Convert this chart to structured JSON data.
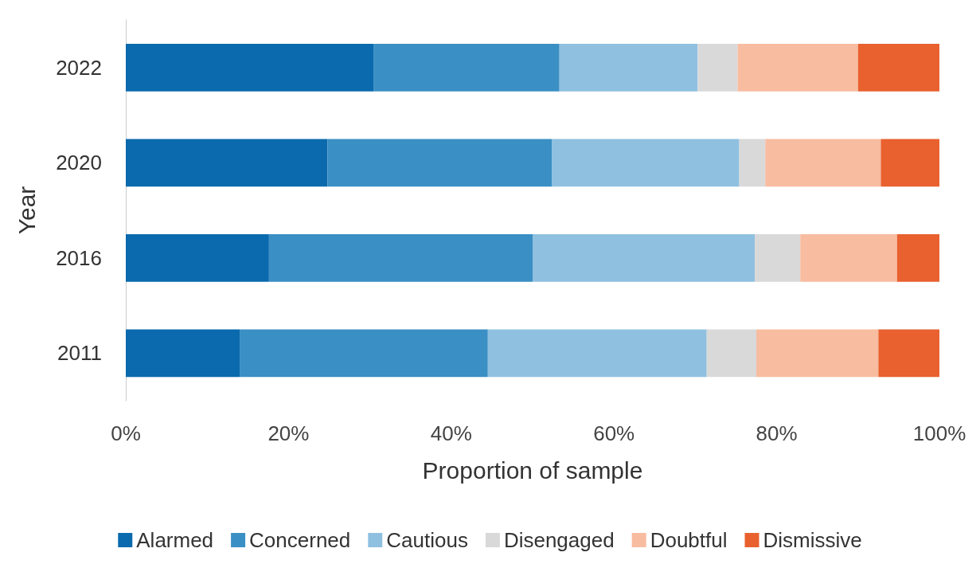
{
  "chart_data": {
    "type": "bar",
    "orientation": "horizontal",
    "stacked": true,
    "xlabel": "Proportion of sample",
    "ylabel": "Year",
    "categories": [
      "2022",
      "2020",
      "2016",
      "2011"
    ],
    "series": [
      {
        "name": "Alarmed",
        "color": "#0a6aad",
        "values": [
          30.5,
          24.8,
          17.6,
          14.0
        ]
      },
      {
        "name": "Concerned",
        "color": "#3a8fc4",
        "values": [
          22.8,
          27.6,
          32.4,
          30.5
        ]
      },
      {
        "name": "Cautious",
        "color": "#8fc0e0",
        "values": [
          17.0,
          23.0,
          27.3,
          26.9
        ]
      },
      {
        "name": "Disengaged",
        "color": "#d9d9d9",
        "values": [
          4.9,
          3.2,
          5.6,
          6.1
        ]
      },
      {
        "name": "Doubtful",
        "color": "#f8bca0",
        "values": [
          14.8,
          14.2,
          11.9,
          15.0
        ]
      },
      {
        "name": "Dismissive",
        "color": "#e8612f",
        "values": [
          10.0,
          7.2,
          5.2,
          7.5
        ]
      }
    ],
    "xlim": [
      0,
      100
    ],
    "xticks": [
      {
        "value": 0,
        "label": "0%"
      },
      {
        "value": 20,
        "label": "20%"
      },
      {
        "value": 40,
        "label": "40%"
      },
      {
        "value": 60,
        "label": "60%"
      },
      {
        "value": 80,
        "label": "80%"
      },
      {
        "value": 100,
        "label": "100%"
      }
    ],
    "grid": false,
    "legend": "bottom"
  }
}
